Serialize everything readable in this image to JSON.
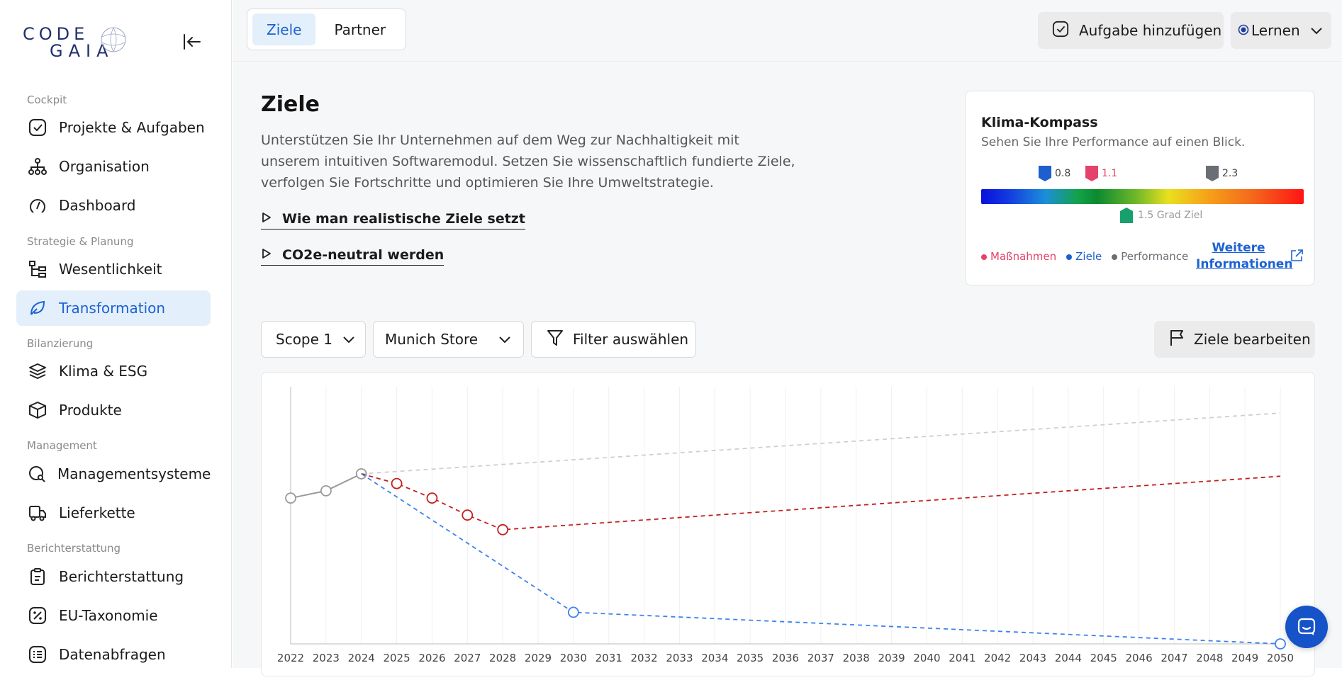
{
  "sidebar": {
    "logo_text_top": "CODE",
    "logo_text_bottom": "GAIA",
    "sections": {
      "cockpit": "Cockpit",
      "strategy": "Strategie & Planung",
      "accounting": "Bilanzierung",
      "management": "Management",
      "reporting": "Berichterstattung"
    },
    "items": [
      {
        "label": "Projekte & Aufgaben",
        "icon": "check-square-icon"
      },
      {
        "label": "Organisation",
        "icon": "org-chart-icon"
      },
      {
        "label": "Dashboard",
        "icon": "gauge-icon"
      },
      {
        "label": "Wesentlichkeit",
        "icon": "hierarchy-icon"
      },
      {
        "label": "Transformation",
        "icon": "leaf-icon"
      },
      {
        "label": "Klima & ESG",
        "icon": "layers-icon"
      },
      {
        "label": "Produkte",
        "icon": "box-icon"
      },
      {
        "label": "Managementsysteme",
        "icon": "search-cog-icon"
      },
      {
        "label": "Lieferkette",
        "icon": "truck-icon"
      },
      {
        "label": "Berichterstattung",
        "icon": "clipboard-icon"
      },
      {
        "label": "EU-Taxonomie",
        "icon": "percent-icon"
      },
      {
        "label": "Datenabfragen",
        "icon": "list-icon"
      }
    ]
  },
  "topbar": {
    "tabs": [
      "Ziele",
      "Partner"
    ],
    "active_tab": "Ziele",
    "add_task_label": "Aufgabe hinzufügen",
    "learn_label": "Lernen"
  },
  "main": {
    "title": "Ziele",
    "intro": "Unterstützen Sie Ihr Unternehmen auf dem Weg zur Nachhaltigkeit mit unserem intuitiven Softwaremodul. Setzen Sie wissenschaftlich fundierte Ziele, verfolgen Sie Fortschritte und optimieren Sie Ihre Umweltstrategie.",
    "links": [
      "Wie man realistische Ziele setzt",
      "CO2e-neutral werden"
    ],
    "filters": {
      "scope": "Scope 1",
      "store": "Munich Store",
      "filter_label": "Filter auswählen",
      "edit_goals": "Ziele bearbeiten"
    }
  },
  "compass": {
    "title": "Klima-Kompass",
    "subtitle": "Sehen Sie Ihre Performance auf einen Blick.",
    "markers": {
      "ziele": "0.8",
      "massnahmen": "1.1",
      "performance": "2.3",
      "target": "1.5 Grad Ziel"
    },
    "legend": [
      "Maßnahmen",
      "Ziele",
      "Performance"
    ],
    "more_info_line1": "Weitere",
    "more_info_line2": "Informationen",
    "colors": {
      "ziele": "#1d5fcf",
      "massnahmen": "#e5426b",
      "performance": "#6b6e75",
      "target": "#18a06c"
    }
  },
  "chart_data": {
    "type": "line",
    "x": [
      2022,
      2023,
      2024,
      2025,
      2026,
      2027,
      2028,
      2029,
      2030,
      2031,
      2032,
      2033,
      2034,
      2035,
      2036,
      2037,
      2038,
      2039,
      2040,
      2041,
      2042,
      2043,
      2044,
      2045,
      2046,
      2047,
      2048,
      2049,
      2050
    ],
    "ylim": [
      0,
      100
    ],
    "grid": "vertical",
    "series": [
      {
        "key": "historical",
        "color": "#9a9a9a",
        "style": "solid",
        "points": [
          [
            2022,
            60
          ],
          [
            2023,
            63
          ],
          [
            2024,
            70
          ]
        ]
      },
      {
        "key": "trend",
        "color": "#cfcfcf",
        "style": "dashed",
        "points": [
          [
            2024,
            70
          ],
          [
            2050,
            95
          ]
        ]
      },
      {
        "key": "massnahmen",
        "color": "#c21f1f",
        "style": "dashed",
        "points": [
          [
            2024,
            70
          ],
          [
            2025,
            66
          ],
          [
            2026,
            60
          ],
          [
            2027,
            53
          ],
          [
            2028,
            47
          ],
          [
            2050,
            69
          ]
        ],
        "markers": [
          2025,
          2026,
          2027,
          2028
        ]
      },
      {
        "key": "ziele",
        "color": "#3b82f0",
        "style": "dashed",
        "points": [
          [
            2024,
            70
          ],
          [
            2030,
            13
          ],
          [
            2050,
            0
          ]
        ],
        "markers": [
          2030,
          2050
        ]
      }
    ]
  }
}
